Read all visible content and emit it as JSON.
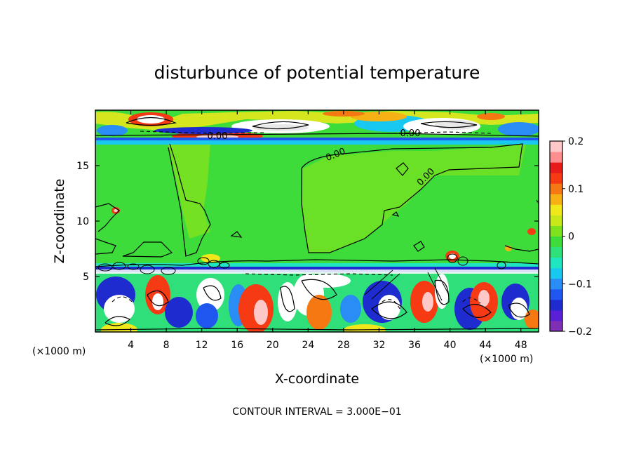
{
  "chart_data": {
    "type": "heatmap",
    "title": "disturbunce of potential temperature",
    "xlabel": "X-coordinate",
    "ylabel": "Z-coordinate",
    "x_unit_left": "(×1000 m)",
    "x_unit_right": "(×1000 m)",
    "xlim": [
      0,
      50
    ],
    "ylim": [
      0,
      20
    ],
    "x_ticks": [
      {
        "value": 4,
        "label": "4"
      },
      {
        "value": 8,
        "label": "8"
      },
      {
        "value": 12,
        "label": "12"
      },
      {
        "value": 16,
        "label": "16"
      },
      {
        "value": 20,
        "label": "20"
      },
      {
        "value": 24,
        "label": "24"
      },
      {
        "value": 28,
        "label": "28"
      },
      {
        "value": 32,
        "label": "32"
      },
      {
        "value": 36,
        "label": "36"
      },
      {
        "value": 40,
        "label": "40"
      },
      {
        "value": 44,
        "label": "44"
      },
      {
        "value": 48,
        "label": "48"
      }
    ],
    "y_ticks": [
      {
        "value": 5,
        "label": "5"
      },
      {
        "value": 10,
        "label": "10"
      },
      {
        "value": 15,
        "label": "15"
      }
    ],
    "colorbar": {
      "range": [
        -0.2,
        0.2
      ],
      "ticks": [
        {
          "value": 0.2,
          "label": "0.2"
        },
        {
          "value": 0.1,
          "label": "0.1"
        },
        {
          "value": 0,
          "label": "0"
        },
        {
          "value": -0.1,
          "label": "−0.1"
        },
        {
          "value": -0.2,
          "label": "−0.2"
        }
      ],
      "colors": [
        "#7e2fb4",
        "#5a1fd6",
        "#1e2ccf",
        "#1f56f0",
        "#2a8cf5",
        "#19c8ef",
        "#1fe6c0",
        "#2fe07a",
        "#3ddc3a",
        "#7ee21e",
        "#c9e81a",
        "#f0e81a",
        "#f6b214",
        "#f67812",
        "#f53a14",
        "#e81b1b",
        "#ff8f8f",
        "#ffc8c8"
      ]
    },
    "contour_interval_text": "CONTOUR INTERVAL = 3.000E−01",
    "contour_labels": [
      "0.00",
      "0.00",
      "0.00",
      "0.00"
    ]
  }
}
